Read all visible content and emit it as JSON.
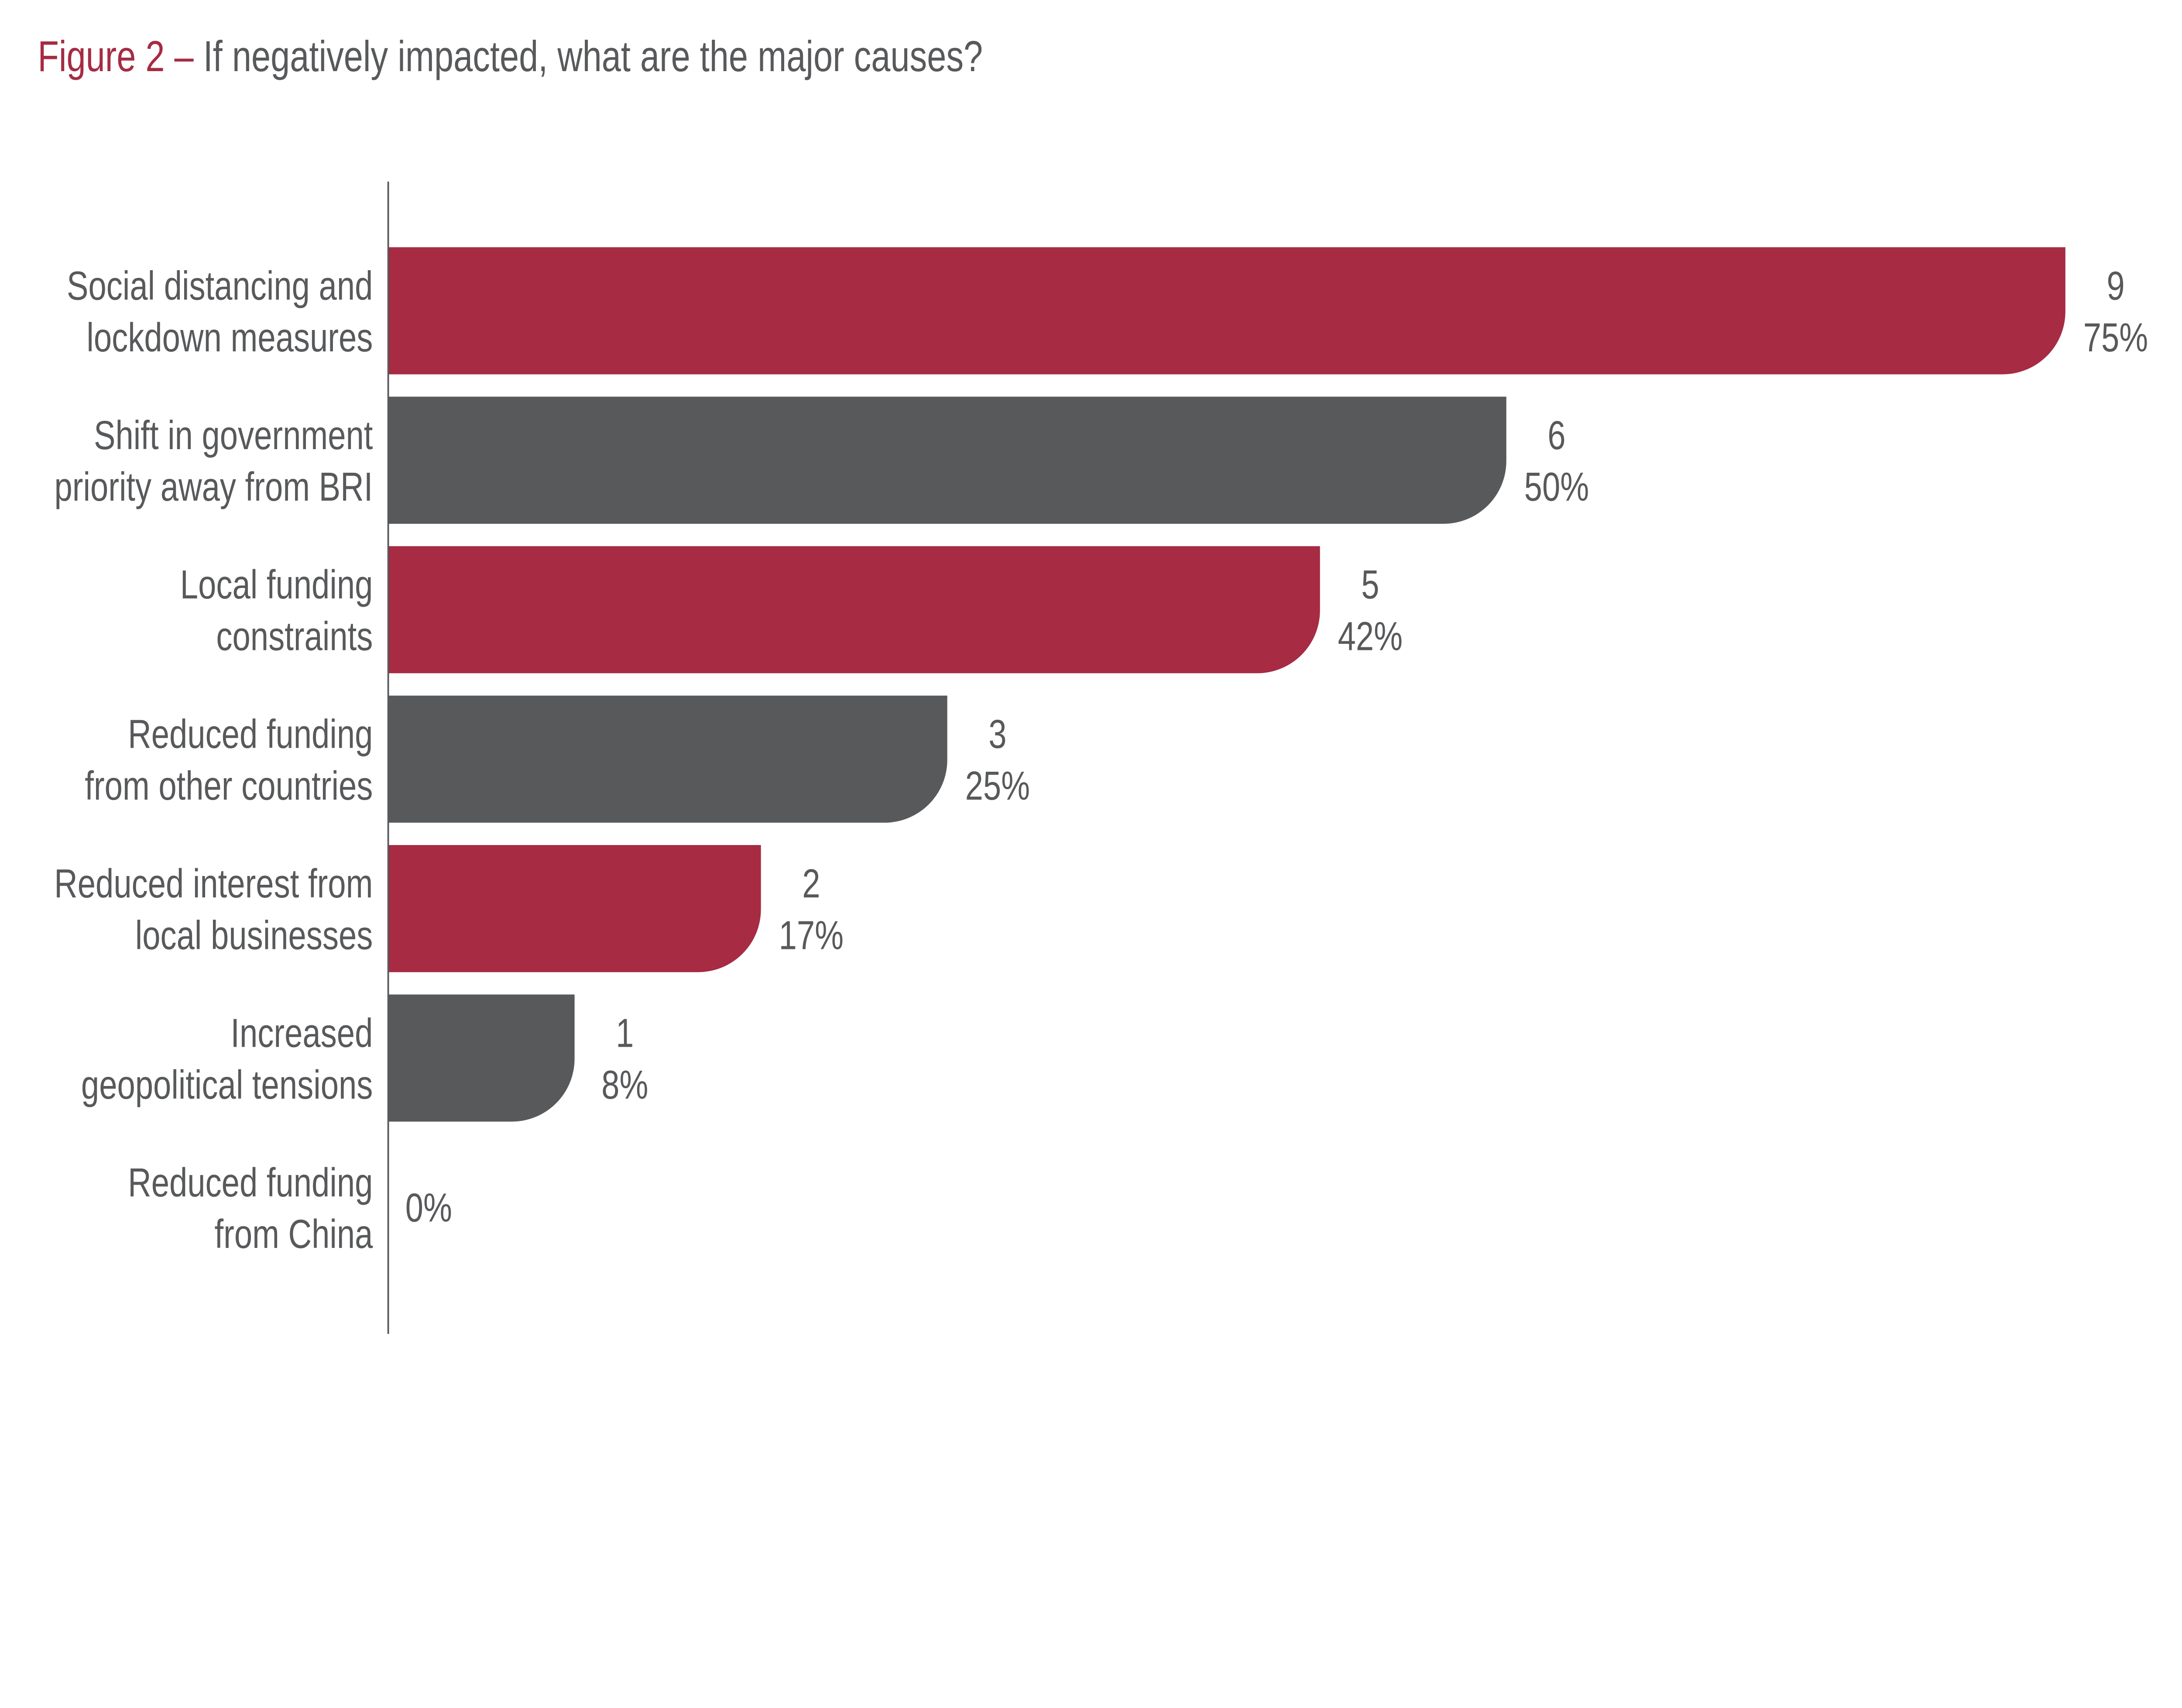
{
  "colors": {
    "accent": "#A62B43",
    "neutral": "#58595B",
    "text": "#58595B"
  },
  "chart_data": {
    "type": "bar",
    "orientation": "horizontal",
    "title_prefix": "Figure 2 –",
    "title": "If negatively impacted, what are the major causes?",
    "categories": [
      [
        "Social distancing and",
        "lockdown measures"
      ],
      [
        "Shift in government",
        "priority away from BRI"
      ],
      [
        "Local funding",
        "constraints"
      ],
      [
        "Reduced funding",
        "from other countries"
      ],
      [
        "Reduced interest from",
        "local businesses"
      ],
      [
        "Increased",
        "geopolitical tensions"
      ],
      [
        "Reduced funding",
        "from China"
      ]
    ],
    "values": [
      9,
      6,
      5,
      3,
      2,
      1,
      0
    ],
    "percent_labels": [
      "75%",
      "50%",
      "42%",
      "25%",
      "17%",
      "8%",
      "0%"
    ],
    "bar_colors": [
      "accent",
      "neutral",
      "accent",
      "neutral",
      "accent",
      "neutral",
      "accent"
    ],
    "xlim": [
      0,
      9
    ],
    "grid": false,
    "legend": "none"
  }
}
